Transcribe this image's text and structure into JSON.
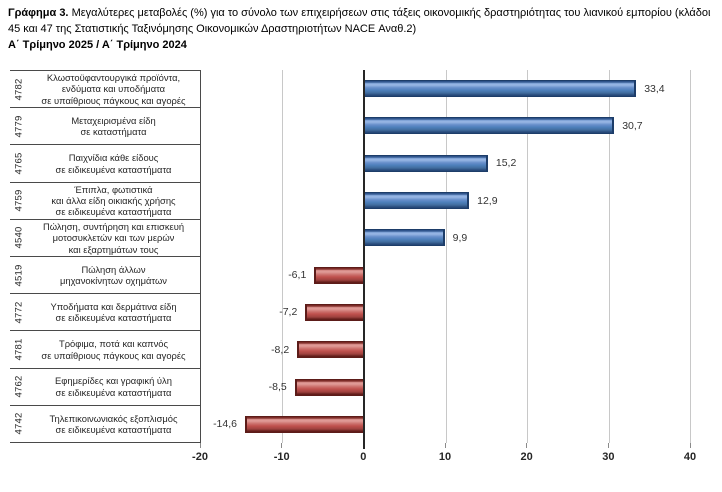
{
  "title": {
    "prefix": "Γράφημα 3.",
    "text": "Μεγαλύτερες μεταβολές (%) για το σύνολο των επιχειρήσεων στις τάξεις οικονομικής δραστηριότητας του λιανικού εμπορίου (κλάδοι 45 και 47 της Στατιστικής Ταξινόμησης Οικονομικών Δραστηριοτήτων NACE Αναθ.2)",
    "period": "Α΄ Τρίμηνο 2025 / Α΄ Τρίμηνο 2024"
  },
  "chart_data": {
    "type": "bar",
    "orientation": "horizontal",
    "title": "Γράφημα 3. Μεγαλύτερες μεταβολές (%) για το σύνολο των επιχειρήσεων στις τάξεις οικονομικής δραστηριότητας του λιανικού εμπορίου (κλάδοι 45 και 47 της Στατιστικής Ταξινόμησης Οικονομικών Δραστηριοτήτων NACE Αναθ.2)",
    "subtitle": "Α΄ Τρίμηνο 2025 / Α΄ Τρίμηνο 2024",
    "xlabel": "",
    "ylabel": "",
    "xlim": [
      -20,
      40
    ],
    "xticks": [
      -20,
      -10,
      0,
      10,
      20,
      30,
      40
    ],
    "grid": true,
    "legend": "none",
    "positive_color": "#4f81bd",
    "negative_color": "#c0504d",
    "rows": [
      {
        "code": "4782",
        "label": "Κλωστοϋφαντουργικά προϊόντα,\nενδύματα και υποδήματα\nσε υπαίθριους πάγκους και αγορές",
        "value": 33.4,
        "value_label": "33,4"
      },
      {
        "code": "4779",
        "label": "Μεταχειρισμένα είδη\nσε καταστήματα",
        "value": 30.7,
        "value_label": "30,7"
      },
      {
        "code": "4765",
        "label": "Παιχνίδια κάθε είδους\nσε ειδικευμένα καταστήματα",
        "value": 15.2,
        "value_label": "15,2"
      },
      {
        "code": "4759",
        "label": "Έπιπλα, φωτιστικά\nκαι άλλα είδη οικιακής χρήσης\nσε ειδικευμένα καταστήματα",
        "value": 12.9,
        "value_label": "12,9"
      },
      {
        "code": "4540",
        "label": "Πώληση, συντήρηση και επισκευή\nμοτοσυκλετών και των μερών\nκαι εξαρτημάτων τους",
        "value": 9.9,
        "value_label": "9,9"
      },
      {
        "code": "4519",
        "label": "Πώληση άλλων\nμηχανοκίνητων οχημάτων",
        "value": -6.1,
        "value_label": "-6,1"
      },
      {
        "code": "4772",
        "label": "Υποδήματα και δερμάτινα είδη\nσε ειδικευμένα καταστήματα",
        "value": -7.2,
        "value_label": "-7,2"
      },
      {
        "code": "4781",
        "label": "Τρόφιμα, ποτά και καπνός\nσε υπαίθριους πάγκους και αγορές",
        "value": -8.2,
        "value_label": "-8,2"
      },
      {
        "code": "4762",
        "label": "Εφημερίδες και γραφική ύλη\nσε ειδικευμένα καταστήματα",
        "value": -8.5,
        "value_label": "-8,5"
      },
      {
        "code": "4742",
        "label": "Τηλεπικοινωνιακός εξοπλισμός\nσε ειδικευμένα καταστήματα",
        "value": -14.6,
        "value_label": "-14,6"
      }
    ]
  }
}
